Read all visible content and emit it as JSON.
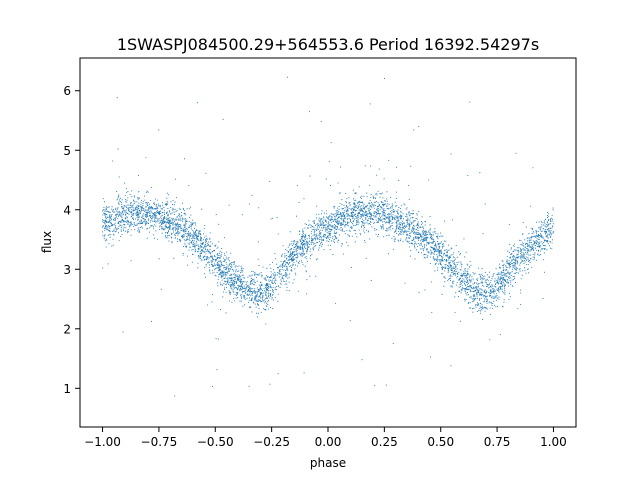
{
  "chart_data": {
    "type": "scatter",
    "title": "1SWASPJ084500.29+564553.6 Period 16392.54297s",
    "xlabel": "phase",
    "ylabel": "flux",
    "xlim": [
      -1.1,
      1.1
    ],
    "ylim": [
      0.35,
      6.55
    ],
    "xticks": [
      -1.0,
      -0.75,
      -0.5,
      -0.25,
      0.0,
      0.25,
      0.5,
      0.75,
      1.0
    ],
    "xtick_labels": [
      "−1.00",
      "−0.75",
      "−0.50",
      "−0.25",
      "0.00",
      "0.25",
      "0.50",
      "0.75",
      "1.00"
    ],
    "yticks": [
      1,
      2,
      3,
      4,
      5,
      6
    ],
    "ytick_labels": [
      "1",
      "2",
      "3",
      "4",
      "5",
      "6"
    ],
    "grid": false,
    "marker_color": "#1f77b4",
    "series": [
      {
        "x": [
          -1.0,
          -0.95,
          -0.9,
          -0.85,
          -0.8,
          -0.75,
          -0.7,
          -0.65,
          -0.6,
          -0.55,
          -0.5,
          -0.45,
          -0.4,
          -0.35,
          -0.3,
          -0.25,
          -0.2,
          -0.15,
          -0.1,
          -0.05,
          0.0,
          0.05,
          0.1,
          0.15,
          0.2,
          0.25,
          0.3,
          0.35,
          0.4,
          0.45,
          0.5,
          0.55,
          0.6,
          0.65,
          0.7,
          0.75,
          0.8,
          0.85,
          0.9,
          0.95,
          1.0
        ],
        "y": [
          3.75,
          3.85,
          3.9,
          3.95,
          3.95,
          3.9,
          3.8,
          3.7,
          3.55,
          3.35,
          3.15,
          2.9,
          2.75,
          2.65,
          2.6,
          2.75,
          3.0,
          3.25,
          3.45,
          3.6,
          3.7,
          3.8,
          3.9,
          3.95,
          3.95,
          3.9,
          3.8,
          3.7,
          3.6,
          3.45,
          3.25,
          3.0,
          2.8,
          2.65,
          2.6,
          2.7,
          2.95,
          3.2,
          3.4,
          3.55,
          3.7
        ]
      }
    ]
  }
}
